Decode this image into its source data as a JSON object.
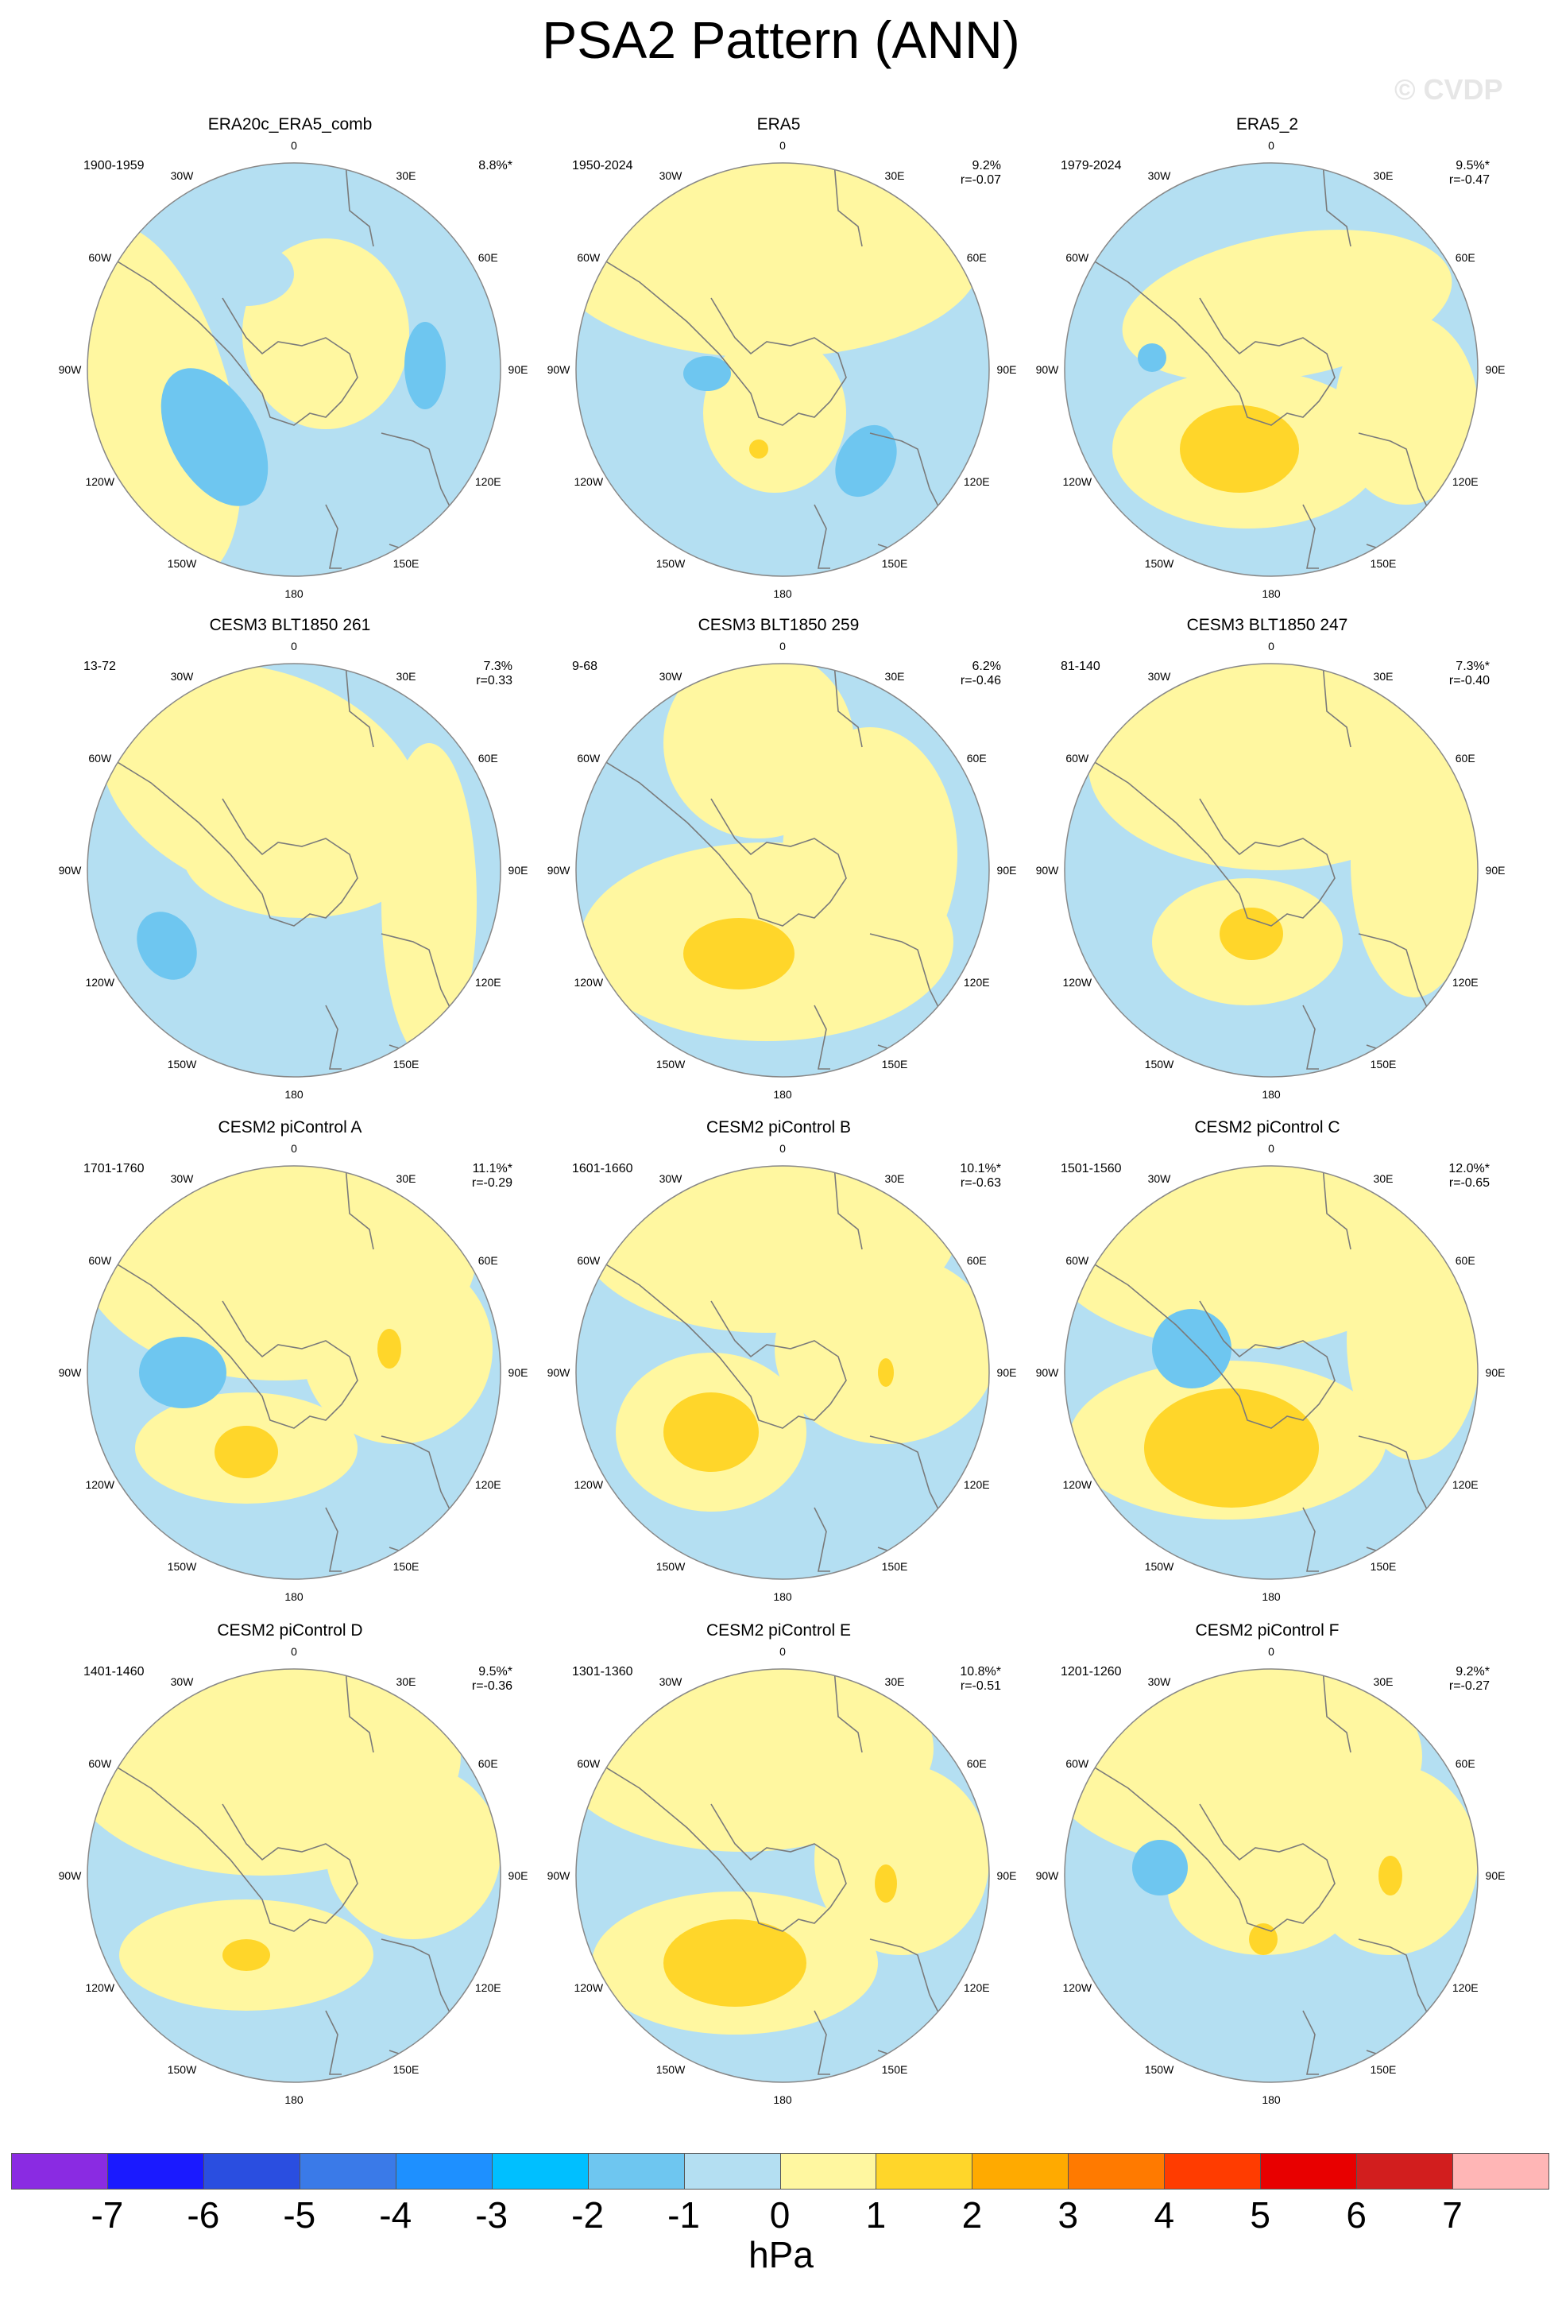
{
  "title": "PSA2 Pattern (ANN)",
  "watermark": "© CVDP",
  "lon_labels": [
    "0",
    "30E",
    "60E",
    "90E",
    "120E",
    "150E",
    "180",
    "150W",
    "120W",
    "90W",
    "60W",
    "30W"
  ],
  "panels": [
    {
      "title": "ERA20c_ERA5_comb",
      "period": "1900-1959",
      "pct": "8.8%*",
      "r": ""
    },
    {
      "title": "ERA5",
      "period": "1950-2024",
      "pct": "9.2%",
      "r": "r=-0.07"
    },
    {
      "title": "ERA5_2",
      "period": "1979-2024",
      "pct": "9.5%*",
      "r": "r=-0.47"
    },
    {
      "title": "CESM3 BLT1850 261",
      "period": "13-72",
      "pct": "7.3%",
      "r": "r=0.33"
    },
    {
      "title": "CESM3 BLT1850 259",
      "period": "9-68",
      "pct": "6.2%",
      "r": "r=-0.46"
    },
    {
      "title": "CESM3 BLT1850 247",
      "period": "81-140",
      "pct": "7.3%*",
      "r": "r=-0.40"
    },
    {
      "title": "CESM2 piControl A",
      "period": "1701-1760",
      "pct": "11.1%*",
      "r": "r=-0.29"
    },
    {
      "title": "CESM2 piControl B",
      "period": "1601-1660",
      "pct": "10.1%*",
      "r": "r=-0.63"
    },
    {
      "title": "CESM2 piControl C",
      "period": "1501-1560",
      "pct": "12.0%*",
      "r": "r=-0.65"
    },
    {
      "title": "CESM2 piControl D",
      "period": "1401-1460",
      "pct": "9.5%*",
      "r": "r=-0.36"
    },
    {
      "title": "CESM2 piControl E",
      "period": "1301-1360",
      "pct": "10.8%*",
      "r": "r=-0.51"
    },
    {
      "title": "CESM2 piControl F",
      "period": "1201-1260",
      "pct": "9.2%*",
      "r": "r=-0.27"
    }
  ],
  "colorbar": {
    "units": "hPa",
    "labels": [
      "-7",
      "-6",
      "-5",
      "-4",
      "-3",
      "-2",
      "-1",
      "0",
      "1",
      "2",
      "3",
      "4",
      "5",
      "6",
      "7"
    ],
    "colors": [
      "#8a2be2",
      "#1a1aff",
      "#2a4ee0",
      "#3a7ae8",
      "#1e90ff",
      "#00bfff",
      "#6ec6f0",
      "#b4dff2",
      "#fff7a0",
      "#ffd62a",
      "#ffaa00",
      "#ff7a00",
      "#ff3c00",
      "#e80000",
      "#d21e1e",
      "#ffb6b6"
    ]
  },
  "map_colors": {
    "neg1": "#b4dff2",
    "neg2": "#6ec6f0",
    "pos1": "#fff7a0",
    "pos2": "#ffd62a",
    "coast": "#7a7a7a",
    "circle": "#888888"
  }
}
